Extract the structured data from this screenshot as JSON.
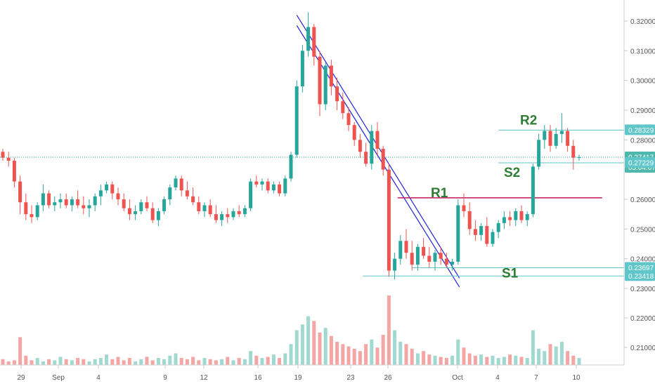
{
  "chart_data": {
    "type": "candlestick",
    "colors": {
      "up": "#26a69a",
      "down": "#ef5350",
      "level_line": "#5fc6c9",
      "resistance": "#c2185b",
      "trendline": "#1e22d6",
      "label": "#2e7d32",
      "axis_text": "#555555",
      "price_tag_bg": "#5fc6c9"
    },
    "y_axis": {
      "range": [
        0.2272,
        0.324
      ],
      "ticks": [
        "0.32000",
        "0.31000",
        "0.30000",
        "0.29000",
        "0.28000",
        "0.26000",
        "0.25000",
        "0.24000",
        "0.23000"
      ],
      "tick_values": [
        0.32,
        0.31,
        0.3,
        0.29,
        0.28,
        0.26,
        0.25,
        0.24,
        0.23
      ]
    },
    "volume_axis": {
      "ticks": [
        "0.22000",
        "0.21000"
      ],
      "tick_values": [
        0.22,
        0.21
      ]
    },
    "x_axis": {
      "labels": [
        "29",
        "Sep",
        "4",
        "9",
        "12",
        "16",
        "19",
        "23",
        "26",
        "Oct",
        "4",
        "7",
        "10"
      ]
    },
    "price_tags": [
      {
        "label": "0.28329",
        "value": 0.28329
      },
      {
        "label": "0.27417",
        "value": 0.27417,
        "sublabel": "03:04:07",
        "current": true
      },
      {
        "label": "0.27229",
        "value": 0.27229
      },
      {
        "label": "0.23697",
        "value": 0.23697
      },
      {
        "label": "0.23418",
        "value": 0.23418
      }
    ],
    "levels": [
      {
        "name": "R2",
        "value": 0.28329,
        "from": "Oct 3",
        "to": "Oct 12",
        "color": "level"
      },
      {
        "name": "S2",
        "value": 0.27229,
        "from": "Oct 3",
        "to": "Oct 12",
        "color": "level"
      },
      {
        "name": "R1",
        "value": 0.2605,
        "from": "Sep 26",
        "to": "Oct 11",
        "color": "resistance"
      },
      {
        "name": "S1",
        "value": 0.23697,
        "from": "Sep 27",
        "to": "Oct 12",
        "color": "level"
      },
      {
        "name": "",
        "value": 0.23418,
        "from": "Sep 24",
        "to": "Oct 12",
        "color": "level"
      }
    ],
    "current_price": 0.27417,
    "trend_channel": [
      {
        "from": [
          "Sep 19",
          0.322
        ],
        "to": [
          "Oct 1",
          0.2335
        ]
      },
      {
        "from": [
          "Sep 19",
          0.3185
        ],
        "to": [
          "Oct 1",
          0.2305
        ]
      }
    ],
    "candles": [
      [
        0.276,
        0.277,
        0.273,
        0.274
      ],
      [
        0.274,
        0.276,
        0.271,
        0.273
      ],
      [
        0.273,
        0.274,
        0.264,
        0.266
      ],
      [
        0.266,
        0.268,
        0.255,
        0.259
      ],
      [
        0.259,
        0.262,
        0.253,
        0.255
      ],
      [
        0.255,
        0.258,
        0.252,
        0.254
      ],
      [
        0.254,
        0.259,
        0.253,
        0.258
      ],
      [
        0.258,
        0.265,
        0.256,
        0.262
      ],
      [
        0.262,
        0.263,
        0.257,
        0.258
      ],
      [
        0.258,
        0.261,
        0.256,
        0.259
      ],
      [
        0.259,
        0.262,
        0.257,
        0.26
      ],
      [
        0.26,
        0.262,
        0.257,
        0.258
      ],
      [
        0.258,
        0.261,
        0.256,
        0.26
      ],
      [
        0.26,
        0.263,
        0.257,
        0.258
      ],
      [
        0.258,
        0.261,
        0.255,
        0.257
      ],
      [
        0.257,
        0.26,
        0.254,
        0.258
      ],
      [
        0.258,
        0.262,
        0.256,
        0.261
      ],
      [
        0.261,
        0.265,
        0.258,
        0.263
      ],
      [
        0.263,
        0.266,
        0.262,
        0.265
      ],
      [
        0.265,
        0.266,
        0.26,
        0.262
      ],
      [
        0.262,
        0.264,
        0.258,
        0.26
      ],
      [
        0.26,
        0.262,
        0.256,
        0.257
      ],
      [
        0.257,
        0.26,
        0.253,
        0.255
      ],
      [
        0.255,
        0.258,
        0.253,
        0.256
      ],
      [
        0.256,
        0.26,
        0.255,
        0.259
      ],
      [
        0.259,
        0.261,
        0.256,
        0.257
      ],
      [
        0.257,
        0.259,
        0.252,
        0.253
      ],
      [
        0.253,
        0.257,
        0.251,
        0.256
      ],
      [
        0.256,
        0.261,
        0.255,
        0.26
      ],
      [
        0.26,
        0.265,
        0.258,
        0.264
      ],
      [
        0.264,
        0.268,
        0.263,
        0.267
      ],
      [
        0.267,
        0.268,
        0.261,
        0.263
      ],
      [
        0.263,
        0.266,
        0.26,
        0.261
      ],
      [
        0.261,
        0.264,
        0.258,
        0.259
      ],
      [
        0.259,
        0.261,
        0.255,
        0.256
      ],
      [
        0.256,
        0.259,
        0.254,
        0.258
      ],
      [
        0.258,
        0.26,
        0.254,
        0.255
      ],
      [
        0.255,
        0.258,
        0.252,
        0.253
      ],
      [
        0.253,
        0.256,
        0.251,
        0.255
      ],
      [
        0.255,
        0.257,
        0.252,
        0.254
      ],
      [
        0.254,
        0.257,
        0.253,
        0.256
      ],
      [
        0.256,
        0.258,
        0.254,
        0.255
      ],
      [
        0.255,
        0.258,
        0.254,
        0.257
      ],
      [
        0.257,
        0.267,
        0.256,
        0.266
      ],
      [
        0.266,
        0.268,
        0.264,
        0.265
      ],
      [
        0.265,
        0.267,
        0.263,
        0.266
      ],
      [
        0.266,
        0.267,
        0.262,
        0.263
      ],
      [
        0.263,
        0.266,
        0.262,
        0.265
      ],
      [
        0.265,
        0.266,
        0.261,
        0.262
      ],
      [
        0.262,
        0.268,
        0.261,
        0.267
      ],
      [
        0.267,
        0.276,
        0.266,
        0.275
      ],
      [
        0.275,
        0.3,
        0.274,
        0.298
      ],
      [
        0.298,
        0.312,
        0.296,
        0.31
      ],
      [
        0.31,
        0.323,
        0.308,
        0.318
      ],
      [
        0.318,
        0.319,
        0.305,
        0.308
      ],
      [
        0.308,
        0.31,
        0.288,
        0.292
      ],
      [
        0.292,
        0.306,
        0.29,
        0.305
      ],
      [
        0.305,
        0.307,
        0.295,
        0.298
      ],
      [
        0.298,
        0.301,
        0.29,
        0.293
      ],
      [
        0.293,
        0.296,
        0.287,
        0.289
      ],
      [
        0.289,
        0.291,
        0.283,
        0.285
      ],
      [
        0.285,
        0.286,
        0.278,
        0.28
      ],
      [
        0.28,
        0.282,
        0.274,
        0.276
      ],
      [
        0.276,
        0.279,
        0.271,
        0.272
      ],
      [
        0.272,
        0.285,
        0.27,
        0.283
      ],
      [
        0.283,
        0.286,
        0.275,
        0.277
      ],
      [
        0.277,
        0.278,
        0.268,
        0.27
      ],
      [
        0.27,
        0.272,
        0.234,
        0.236
      ],
      [
        0.236,
        0.242,
        0.233,
        0.24
      ],
      [
        0.24,
        0.248,
        0.238,
        0.246
      ],
      [
        0.246,
        0.25,
        0.24,
        0.242
      ],
      [
        0.242,
        0.246,
        0.236,
        0.238
      ],
      [
        0.238,
        0.245,
        0.236,
        0.244
      ],
      [
        0.244,
        0.247,
        0.24,
        0.241
      ],
      [
        0.241,
        0.244,
        0.237,
        0.239
      ],
      [
        0.239,
        0.243,
        0.236,
        0.242
      ],
      [
        0.242,
        0.244,
        0.238,
        0.24
      ],
      [
        0.24,
        0.242,
        0.237,
        0.238
      ],
      [
        0.238,
        0.24,
        0.236,
        0.239
      ],
      [
        0.239,
        0.26,
        0.238,
        0.258
      ],
      [
        0.258,
        0.262,
        0.254,
        0.256
      ],
      [
        0.256,
        0.259,
        0.248,
        0.25
      ],
      [
        0.25,
        0.253,
        0.246,
        0.248
      ],
      [
        0.248,
        0.252,
        0.246,
        0.251
      ],
      [
        0.251,
        0.254,
        0.244,
        0.245
      ],
      [
        0.245,
        0.25,
        0.244,
        0.249
      ],
      [
        0.249,
        0.253,
        0.247,
        0.252
      ],
      [
        0.252,
        0.256,
        0.25,
        0.254
      ],
      [
        0.254,
        0.256,
        0.251,
        0.253
      ],
      [
        0.253,
        0.257,
        0.251,
        0.256
      ],
      [
        0.256,
        0.258,
        0.252,
        0.253
      ],
      [
        0.253,
        0.256,
        0.251,
        0.255
      ],
      [
        0.255,
        0.272,
        0.254,
        0.271
      ],
      [
        0.271,
        0.282,
        0.27,
        0.28
      ],
      [
        0.28,
        0.285,
        0.277,
        0.283
      ],
      [
        0.283,
        0.285,
        0.276,
        0.278
      ],
      [
        0.278,
        0.284,
        0.277,
        0.282
      ],
      [
        0.282,
        0.289,
        0.279,
        0.283
      ],
      [
        0.283,
        0.284,
        0.276,
        0.278
      ],
      [
        0.278,
        0.28,
        0.27,
        0.274
      ],
      [
        0.274,
        0.275,
        0.273,
        0.27417
      ]
    ],
    "volumes": [
      5,
      3,
      4,
      24,
      8,
      4,
      6,
      3,
      5,
      4,
      7,
      5,
      4,
      6,
      5,
      3,
      5,
      6,
      9,
      5,
      7,
      4,
      6,
      3,
      5,
      7,
      4,
      6,
      5,
      8,
      10,
      6,
      5,
      7,
      4,
      6,
      5,
      4,
      5,
      7,
      4,
      6,
      5,
      12,
      8,
      6,
      7,
      9,
      6,
      10,
      18,
      30,
      35,
      42,
      38,
      28,
      32,
      25,
      20,
      18,
      16,
      14,
      12,
      18,
      22,
      15,
      26,
      60,
      30,
      20,
      18,
      14,
      10,
      12,
      9,
      8,
      7,
      6,
      8,
      22,
      15,
      10,
      8,
      9,
      7,
      8,
      6,
      7,
      9,
      8,
      7,
      6,
      30,
      14,
      12,
      18,
      16,
      20,
      12,
      8,
      6
    ]
  }
}
